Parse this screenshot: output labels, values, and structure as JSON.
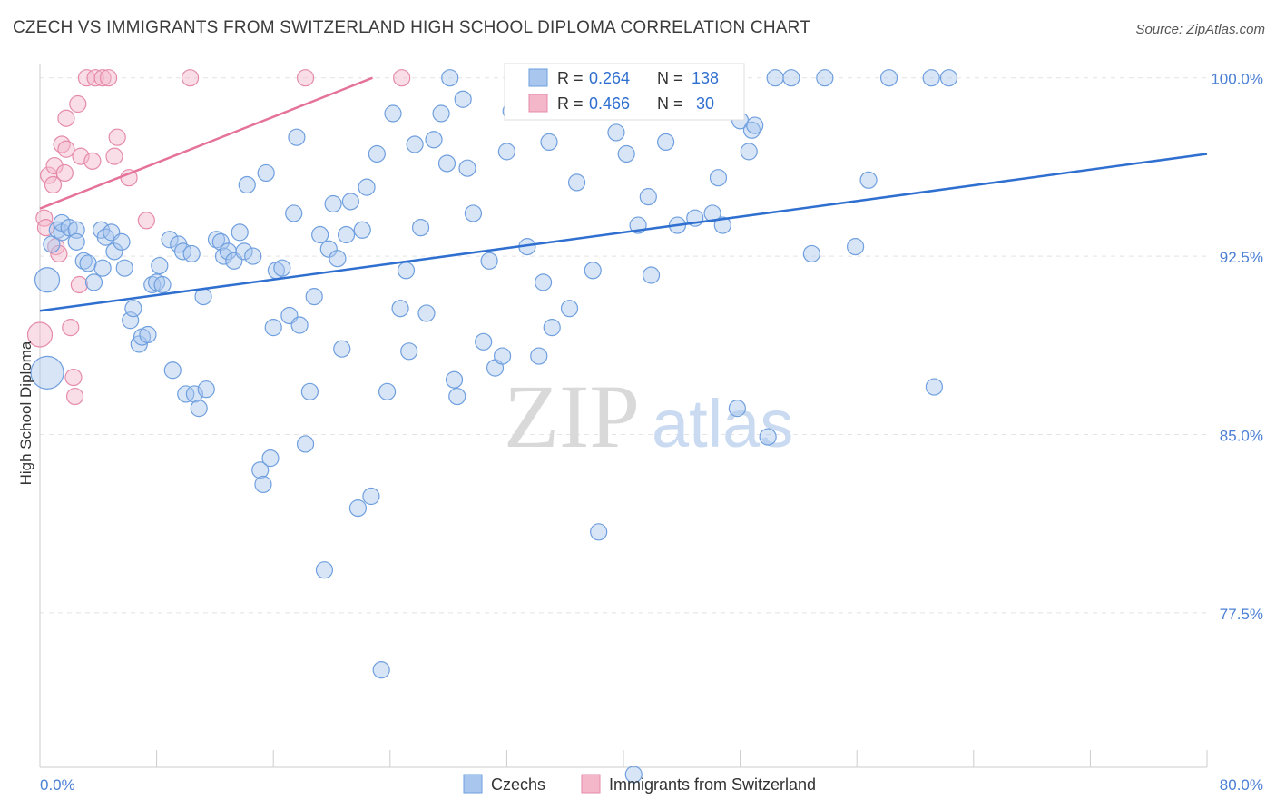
{
  "header": {
    "title": "CZECH VS IMMIGRANTS FROM SWITZERLAND HIGH SCHOOL DIPLOMA CORRELATION CHART",
    "source": "Source: ZipAtlas.com"
  },
  "watermark": {
    "zip": "ZIP",
    "atlas": "atlas"
  },
  "colors": {
    "blue": "#2f6fcf",
    "blue_fill": "#a9c6ee",
    "pink": "#e57399",
    "pink_fill": "#f4b6c9",
    "axis_label": "#4a7fd4"
  },
  "legend": {
    "rows": [
      {
        "r_label": "R = ",
        "r_value": "0.264",
        "n_label": "N = ",
        "n_value": "138"
      },
      {
        "r_label": "R = ",
        "r_value": "0.466",
        "n_label": "N = ",
        "n_value": " 30"
      }
    ]
  },
  "bottom_legend": {
    "czechs": "Czechs",
    "swiss": "Immigrants from Switzerland"
  },
  "chart_data": {
    "type": "scatter",
    "title": "CZECH VS IMMIGRANTS FROM SWITZERLAND HIGH SCHOOL DIPLOMA CORRELATION CHART",
    "xlabel": "",
    "ylabel": "High School Diploma",
    "xlim": [
      0,
      80
    ],
    "ylim": [
      71.0,
      100.6
    ],
    "x_tick_labels": [
      "0.0%",
      "80.0%"
    ],
    "y_ticks": [
      77.5,
      85.0,
      92.5,
      100.0
    ],
    "y_tick_labels": [
      "77.5%",
      "85.0%",
      "92.5%",
      "100.0%"
    ],
    "grid": true,
    "series": [
      {
        "name": "Czechs",
        "trend": [
          [
            0,
            90.2
          ],
          [
            80,
            96.8
          ]
        ],
        "points": [
          [
            0.5,
            87.6,
            2
          ],
          [
            0.5,
            91.5,
            1.5
          ],
          [
            0.8,
            93.0,
            1
          ],
          [
            1.2,
            93.6,
            1
          ],
          [
            1.5,
            93.5,
            1
          ],
          [
            1.5,
            93.9,
            1
          ],
          [
            2.0,
            93.7,
            1
          ],
          [
            2.5,
            93.6,
            1
          ],
          [
            2.5,
            93.1,
            1
          ],
          [
            3.0,
            92.3,
            1
          ],
          [
            3.3,
            92.2,
            1
          ],
          [
            3.7,
            91.4,
            1
          ],
          [
            4.2,
            93.6,
            1
          ],
          [
            4.3,
            92.0,
            1
          ],
          [
            4.5,
            93.3,
            1
          ],
          [
            4.9,
            93.5,
            1
          ],
          [
            5.1,
            92.7,
            1
          ],
          [
            5.6,
            93.1,
            1
          ],
          [
            5.8,
            92.0,
            1
          ],
          [
            6.2,
            89.8,
            1
          ],
          [
            6.4,
            90.3,
            1
          ],
          [
            6.8,
            88.8,
            1
          ],
          [
            7.0,
            89.1,
            1
          ],
          [
            7.4,
            89.2,
            1
          ],
          [
            7.7,
            91.3,
            1
          ],
          [
            8.0,
            91.4,
            1
          ],
          [
            8.2,
            92.1,
            1
          ],
          [
            8.4,
            91.3,
            1
          ],
          [
            8.9,
            93.2,
            1
          ],
          [
            9.1,
            87.7,
            1
          ],
          [
            9.5,
            93.0,
            1
          ],
          [
            9.8,
            92.7,
            1
          ],
          [
            10.0,
            86.7,
            1
          ],
          [
            10.4,
            92.6,
            1
          ],
          [
            10.6,
            86.7,
            1
          ],
          [
            10.9,
            86.1,
            1
          ],
          [
            11.2,
            90.8,
            1
          ],
          [
            11.4,
            86.9,
            1
          ],
          [
            12.1,
            93.2,
            1
          ],
          [
            12.4,
            93.1,
            1
          ],
          [
            12.6,
            92.5,
            1
          ],
          [
            12.9,
            92.7,
            1
          ],
          [
            13.3,
            92.3,
            1
          ],
          [
            13.7,
            93.5,
            1
          ],
          [
            14.0,
            92.7,
            1
          ],
          [
            14.2,
            95.5,
            1
          ],
          [
            14.6,
            92.5,
            1
          ],
          [
            15.1,
            83.5,
            1
          ],
          [
            15.3,
            82.9,
            1
          ],
          [
            15.5,
            96.0,
            1
          ],
          [
            15.8,
            84.0,
            1
          ],
          [
            16.0,
            89.5,
            1
          ],
          [
            16.2,
            91.9,
            1
          ],
          [
            16.6,
            92.0,
            1
          ],
          [
            17.1,
            90.0,
            1
          ],
          [
            17.4,
            94.3,
            1
          ],
          [
            17.6,
            97.5,
            1
          ],
          [
            17.8,
            89.6,
            1
          ],
          [
            18.2,
            84.6,
            1
          ],
          [
            18.5,
            86.8,
            1
          ],
          [
            18.8,
            90.8,
            1
          ],
          [
            19.2,
            93.4,
            1
          ],
          [
            19.5,
            79.3,
            1
          ],
          [
            19.8,
            92.8,
            1
          ],
          [
            20.1,
            94.7,
            1
          ],
          [
            20.4,
            92.4,
            1
          ],
          [
            20.7,
            88.6,
            1
          ],
          [
            21.0,
            93.4,
            1
          ],
          [
            21.3,
            94.8,
            1
          ],
          [
            21.8,
            81.9,
            1
          ],
          [
            22.1,
            93.6,
            1
          ],
          [
            22.4,
            95.4,
            1
          ],
          [
            22.7,
            82.4,
            1
          ],
          [
            23.1,
            96.8,
            1
          ],
          [
            23.4,
            75.1,
            1
          ],
          [
            23.8,
            86.8,
            1
          ],
          [
            24.2,
            98.5,
            1
          ],
          [
            24.7,
            90.3,
            1
          ],
          [
            25.1,
            91.9,
            1
          ],
          [
            25.3,
            88.5,
            1
          ],
          [
            25.7,
            97.2,
            1
          ],
          [
            26.1,
            93.7,
            1
          ],
          [
            26.5,
            90.1,
            1
          ],
          [
            27.0,
            97.4,
            1
          ],
          [
            27.5,
            98.5,
            1
          ],
          [
            27.9,
            96.4,
            1
          ],
          [
            28.1,
            100.0,
            1
          ],
          [
            28.4,
            87.3,
            1
          ],
          [
            28.6,
            86.6,
            1
          ],
          [
            29.0,
            99.1,
            1
          ],
          [
            29.3,
            96.2,
            1
          ],
          [
            29.7,
            94.3,
            1
          ],
          [
            30.4,
            88.9,
            1
          ],
          [
            30.8,
            92.3,
            1
          ],
          [
            31.2,
            87.8,
            1
          ],
          [
            31.7,
            88.3,
            1
          ],
          [
            32.0,
            96.9,
            1
          ],
          [
            32.3,
            98.6,
            1
          ],
          [
            32.9,
            100.0,
            1
          ],
          [
            33.4,
            92.9,
            1
          ],
          [
            33.8,
            99.1,
            1
          ],
          [
            34.2,
            88.3,
            1
          ],
          [
            34.5,
            91.4,
            1
          ],
          [
            34.9,
            97.3,
            1
          ],
          [
            35.1,
            89.5,
            1
          ],
          [
            35.6,
            99.0,
            1
          ],
          [
            36.1,
            100.0,
            1
          ],
          [
            36.3,
            90.3,
            1
          ],
          [
            36.8,
            95.6,
            1
          ],
          [
            37.4,
            100.0,
            1
          ],
          [
            37.9,
            91.9,
            1
          ],
          [
            38.3,
            80.9,
            1
          ],
          [
            39.2,
            100.0,
            1
          ],
          [
            39.5,
            97.7,
            1
          ],
          [
            40.2,
            96.8,
            1
          ],
          [
            40.7,
            70.7,
            1
          ],
          [
            41.0,
            93.8,
            1
          ],
          [
            41.7,
            95.0,
            1
          ],
          [
            41.9,
            91.7,
            1
          ],
          [
            42.1,
            100.0,
            1
          ],
          [
            42.9,
            97.3,
            1
          ],
          [
            43.7,
            93.8,
            1
          ],
          [
            44.3,
            100.0,
            1
          ],
          [
            44.9,
            94.1,
            1
          ],
          [
            45.5,
            100.0,
            1
          ],
          [
            46.1,
            94.3,
            1
          ],
          [
            46.5,
            95.8,
            1
          ],
          [
            46.8,
            93.8,
            1
          ],
          [
            48.0,
            98.2,
            1
          ],
          [
            47.8,
            86.1,
            1
          ],
          [
            48.6,
            96.9,
            1
          ],
          [
            48.8,
            97.8,
            1
          ],
          [
            49.0,
            98.0,
            1
          ],
          [
            49.9,
            84.9,
            1
          ],
          [
            50.4,
            100.0,
            1
          ],
          [
            51.5,
            100.0,
            1
          ],
          [
            52.9,
            92.6,
            1
          ],
          [
            53.8,
            100.0,
            1
          ],
          [
            55.9,
            92.9,
            1
          ],
          [
            56.8,
            95.7,
            1
          ],
          [
            58.2,
            100.0,
            1
          ],
          [
            61.1,
            100.0,
            1
          ],
          [
            61.3,
            87.0,
            1
          ],
          [
            62.3,
            100.0,
            1
          ]
        ]
      },
      {
        "name": "Immigrants from Switzerland",
        "trend": [
          [
            0,
            94.5
          ],
          [
            22.8,
            100.0
          ]
        ],
        "points": [
          [
            0.0,
            89.2,
            1.5
          ],
          [
            0.3,
            94.1,
            1
          ],
          [
            0.4,
            93.7,
            1
          ],
          [
            0.6,
            95.9,
            1
          ],
          [
            0.9,
            95.5,
            1
          ],
          [
            1.0,
            96.3,
            1
          ],
          [
            1.1,
            92.9,
            1
          ],
          [
            1.3,
            92.6,
            1
          ],
          [
            1.5,
            97.2,
            1
          ],
          [
            1.7,
            96.0,
            1
          ],
          [
            1.8,
            98.3,
            1
          ],
          [
            1.8,
            97.0,
            1
          ],
          [
            2.1,
            89.5,
            1
          ],
          [
            2.3,
            87.4,
            1
          ],
          [
            2.4,
            86.6,
            1
          ],
          [
            2.6,
            98.9,
            1
          ],
          [
            2.7,
            91.3,
            1
          ],
          [
            2.8,
            96.7,
            1
          ],
          [
            3.2,
            100.0,
            1
          ],
          [
            3.6,
            96.5,
            1
          ],
          [
            3.8,
            100.0,
            1
          ],
          [
            4.3,
            100.0,
            1
          ],
          [
            4.7,
            100.0,
            1
          ],
          [
            5.1,
            96.7,
            1
          ],
          [
            5.3,
            97.5,
            1
          ],
          [
            6.1,
            95.8,
            1
          ],
          [
            7.3,
            94.0,
            1
          ],
          [
            10.3,
            100.0,
            1
          ],
          [
            18.2,
            100.0,
            1
          ],
          [
            24.8,
            100.0,
            1
          ]
        ]
      }
    ]
  }
}
